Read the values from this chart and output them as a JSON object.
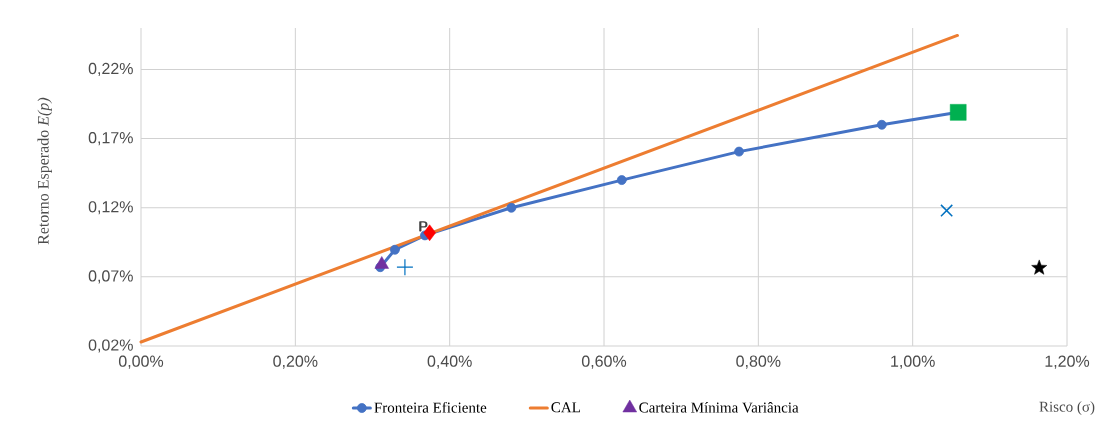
{
  "chart_data": {
    "type": "line",
    "xlabel": "Risco (σ)",
    "ylabel": "Retorno Esperado *E(p)*",
    "xlim": [
      0,
      1.2
    ],
    "ylim": [
      0.02,
      0.25
    ],
    "xticks": [
      {
        "value": 0,
        "label": "0,00%"
      },
      {
        "value": 0.2,
        "label": "0,20%"
      },
      {
        "value": 0.4,
        "label": "0,40%"
      },
      {
        "value": 0.6,
        "label": "0,60%"
      },
      {
        "value": 0.8,
        "label": "0,80%"
      },
      {
        "value": 1.0,
        "label": "1,00%"
      },
      {
        "value": 1.2,
        "label": "1,20%"
      }
    ],
    "yticks": [
      {
        "value": 0.02,
        "label": "0,02%"
      },
      {
        "value": 0.07,
        "label": "0,07%"
      },
      {
        "value": 0.12,
        "label": "0,12%"
      },
      {
        "value": 0.17,
        "label": "0,17%"
      },
      {
        "value": 0.22,
        "label": "0,22%"
      }
    ],
    "grid": true,
    "legend": "bottom",
    "series": [
      {
        "name": "Fronteira Eficiente",
        "color": "#4472c4",
        "marker": "circle",
        "x": [
          0.31,
          0.329,
          0.368,
          0.48,
          0.623,
          0.775,
          0.96,
          1.059
        ],
        "values": [
          0.077,
          0.0896,
          0.1,
          0.12,
          0.14,
          0.1606,
          0.18,
          0.189
        ]
      },
      {
        "name": "CAL",
        "color": "#ed7d31",
        "marker": "none",
        "x": [
          0,
          1.058
        ],
        "values": [
          0.0229,
          0.2446
        ]
      },
      {
        "name": "Carteira Mínima Variância",
        "type": "scatter",
        "color": "#7030a0",
        "marker": "triangle",
        "x": [
          0.312
        ],
        "values": [
          0.079
        ]
      },
      {
        "type": "scatter",
        "color": "#ff0000",
        "marker": "diamond",
        "x": [
          0.374
        ],
        "values": [
          0.1019
        ]
      },
      {
        "type": "scatter",
        "color": "#00b050",
        "marker": "square",
        "x": [
          1.059
        ],
        "values": [
          0.189
        ]
      },
      {
        "type": "scatter",
        "color": "#0070c0",
        "marker": "plus",
        "x": [
          0.342
        ],
        "values": [
          0.077
        ]
      },
      {
        "type": "scatter",
        "color": "#0070c0",
        "marker": "cross",
        "x": [
          1.044
        ],
        "values": [
          0.118
        ]
      },
      {
        "type": "scatter",
        "color": "#000000",
        "marker": "star",
        "x": [
          1.164
        ],
        "values": [
          0.0765
        ]
      }
    ],
    "annotations": [
      {
        "text": "P",
        "x": 0.374,
        "y": 0.1019
      }
    ]
  }
}
